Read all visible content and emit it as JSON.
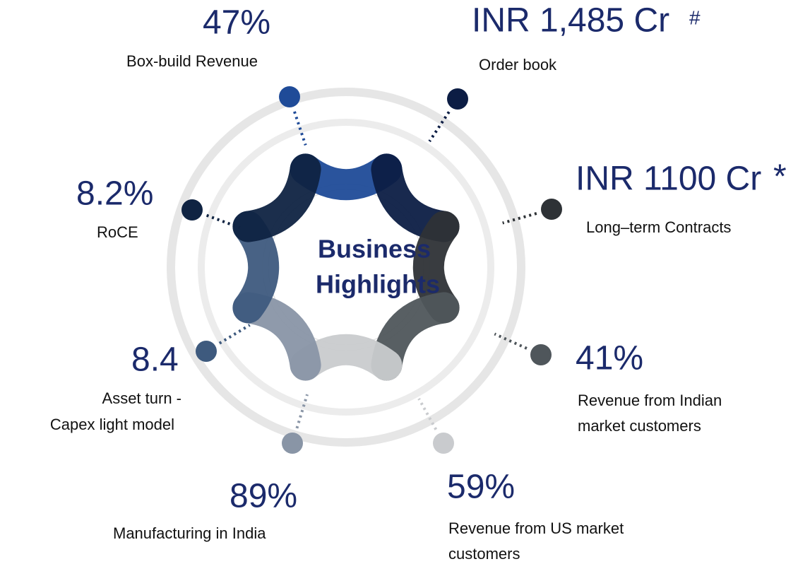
{
  "center": {
    "lines": [
      "Business",
      "Highlights"
    ]
  },
  "highlights": [
    {
      "value": "47%",
      "label": [
        "Box-build Revenue"
      ]
    },
    {
      "value": "INR 1,485 Cr",
      "note": "#",
      "label": [
        "Order book"
      ]
    },
    {
      "value": "INR 1100 Cr",
      "note": "*",
      "label": [
        "Long–term Contracts"
      ]
    },
    {
      "value": "41%",
      "label": [
        "Revenue from Indian",
        "market customers"
      ]
    },
    {
      "value": "59%",
      "label": [
        "Revenue from US market",
        "customers"
      ]
    },
    {
      "value": "89%",
      "label": [
        "Manufacturing in India"
      ]
    },
    {
      "value": "8.4",
      "label": [
        "Asset turn -",
        "Capex light model"
      ]
    },
    {
      "value": "8.2%",
      "label": [
        "RoCE"
      ]
    }
  ]
}
